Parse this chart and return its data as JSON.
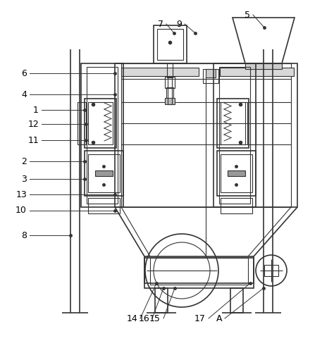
{
  "bg_color": "#ffffff",
  "line_color": "#333333",
  "lw_thin": 0.8,
  "lw_med": 1.2,
  "lw_thick": 1.6,
  "fig_width": 4.74,
  "fig_height": 4.94
}
